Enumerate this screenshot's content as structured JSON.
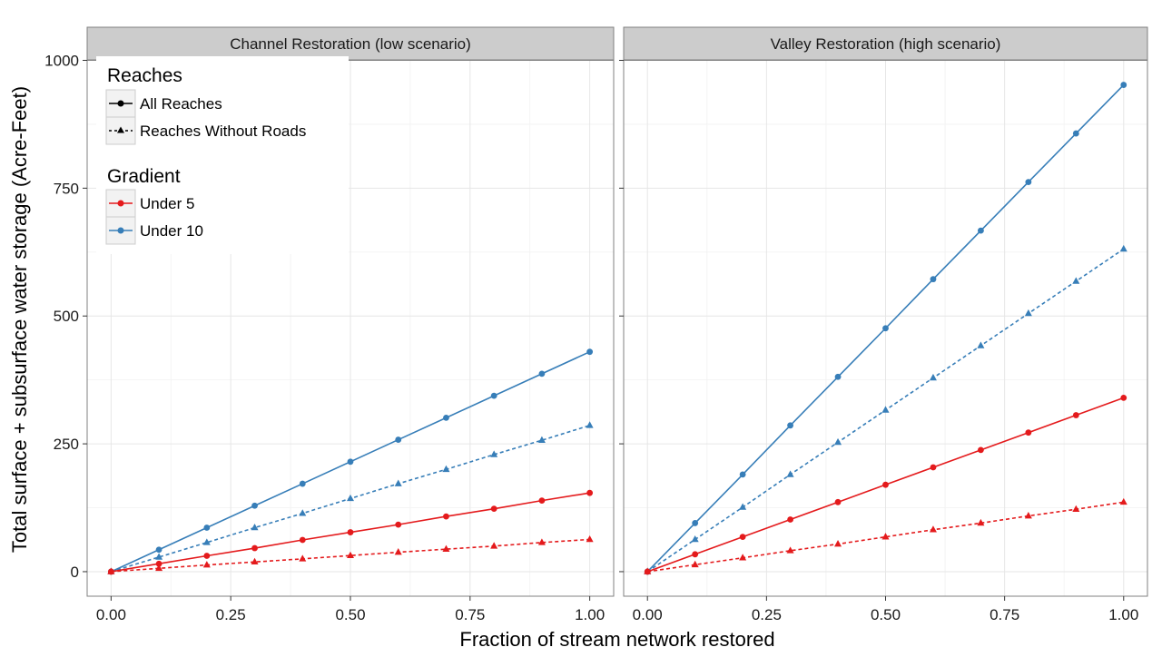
{
  "chart_data": {
    "type": "line",
    "xlabel": "Fraction of stream network restored",
    "ylabel": "Total surface + subsurface water storage (Acre-Feet)",
    "xlim": [
      -0.05,
      1.05
    ],
    "ylim": [
      -48,
      1000
    ],
    "x_ticks": [
      "0.00",
      "0.25",
      "0.50",
      "0.75",
      "1.00"
    ],
    "y_ticks": [
      "0",
      "250",
      "500",
      "750",
      "1000"
    ],
    "x": [
      0.0,
      0.1,
      0.2,
      0.3,
      0.4,
      0.5,
      0.6,
      0.7,
      0.8,
      0.9,
      1.0
    ],
    "grid": true,
    "legend": {
      "placement": "top-left inside first panel",
      "reaches_title": "Reaches",
      "reaches": [
        {
          "label": "All Reaches",
          "linetype": "solid",
          "marker": "circle"
        },
        {
          "label": "Reaches Without Roads",
          "linetype": "dashed",
          "marker": "triangle"
        }
      ],
      "gradient_title": "Gradient",
      "gradient": [
        {
          "label": "Under 5",
          "color": "#E41A1C"
        },
        {
          "label": "Under 10",
          "color": "#377EB8"
        }
      ]
    },
    "panels": [
      {
        "title": "Channel Restoration (low scenario)",
        "series": [
          {
            "gradient": "Under 10",
            "reaches": "All Reaches",
            "values": [
              0,
              43,
              86,
              129,
              172,
              215,
              258,
              301,
              344,
              387,
              430
            ]
          },
          {
            "gradient": "Under 10",
            "reaches": "Reaches Without Roads",
            "values": [
              0,
              28.5,
              57,
              86,
              114,
              143,
              172,
              200,
              229,
              257,
              286
            ]
          },
          {
            "gradient": "Under 5",
            "reaches": "All Reaches",
            "values": [
              0,
              15.5,
              31,
              46,
              62,
              77,
              92,
              108,
              123,
              139,
              154
            ]
          },
          {
            "gradient": "Under 5",
            "reaches": "Reaches Without Roads",
            "values": [
              0,
              6.5,
              13,
              19,
              25,
              31.5,
              38,
              44,
              50,
              57,
              63
            ]
          }
        ]
      },
      {
        "title": "Valley Restoration (high scenario)",
        "series": [
          {
            "gradient": "Under 10",
            "reaches": "All Reaches",
            "values": [
              0,
              95,
              190,
              286,
              381,
              476,
              572,
              667,
              762,
              857,
              952
            ]
          },
          {
            "gradient": "Under 10",
            "reaches": "Reaches Without Roads",
            "values": [
              0,
              63,
              126,
              190,
              253,
              316,
              379,
              442,
              505,
              568,
              631
            ]
          },
          {
            "gradient": "Under 5",
            "reaches": "All Reaches",
            "values": [
              0,
              34,
              68,
              102,
              136,
              170,
              204,
              238,
              272,
              306,
              340
            ]
          },
          {
            "gradient": "Under 5",
            "reaches": "Reaches Without Roads",
            "values": [
              0,
              13.6,
              27,
              41,
              54,
              68,
              82,
              95,
              109,
              122,
              136
            ]
          }
        ]
      }
    ]
  }
}
